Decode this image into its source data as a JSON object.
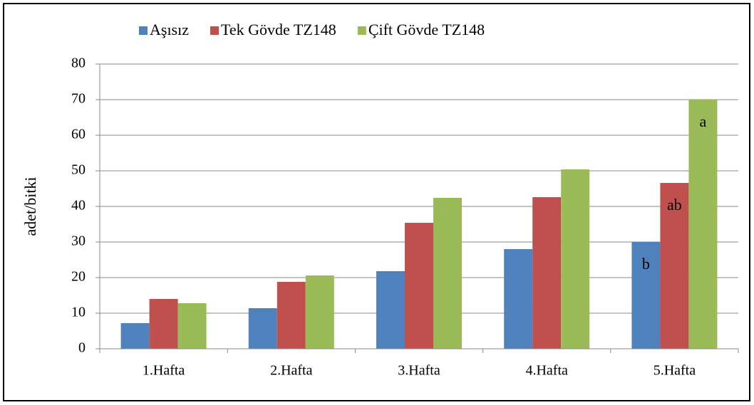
{
  "chart_data": {
    "type": "bar",
    "y_label": "adet/bitki",
    "categories": [
      "1.Hafta",
      "2.Hafta",
      "3.Hafta",
      "4.Hafta",
      "5.Hafta"
    ],
    "series": [
      {
        "name": "Aşısız",
        "color": "#4f81bd",
        "values": [
          7.2,
          11.4,
          21.8,
          28,
          30
        ]
      },
      {
        "name": "Tek Gövde TZ148",
        "color": "#c0504d",
        "values": [
          14,
          18.8,
          35.4,
          42.6,
          46.6
        ]
      },
      {
        "name": "Çift Gövde TZ148",
        "color": "#9bbb59",
        "values": [
          12.8,
          20.6,
          42.4,
          50.4,
          70
        ]
      }
    ],
    "annotations": [
      "b",
      "ab",
      "a"
    ],
    "ylim": [
      0,
      80
    ],
    "yticks": [
      0,
      10,
      20,
      30,
      40,
      50,
      60,
      70,
      80
    ],
    "grid": true,
    "legend": "top"
  }
}
